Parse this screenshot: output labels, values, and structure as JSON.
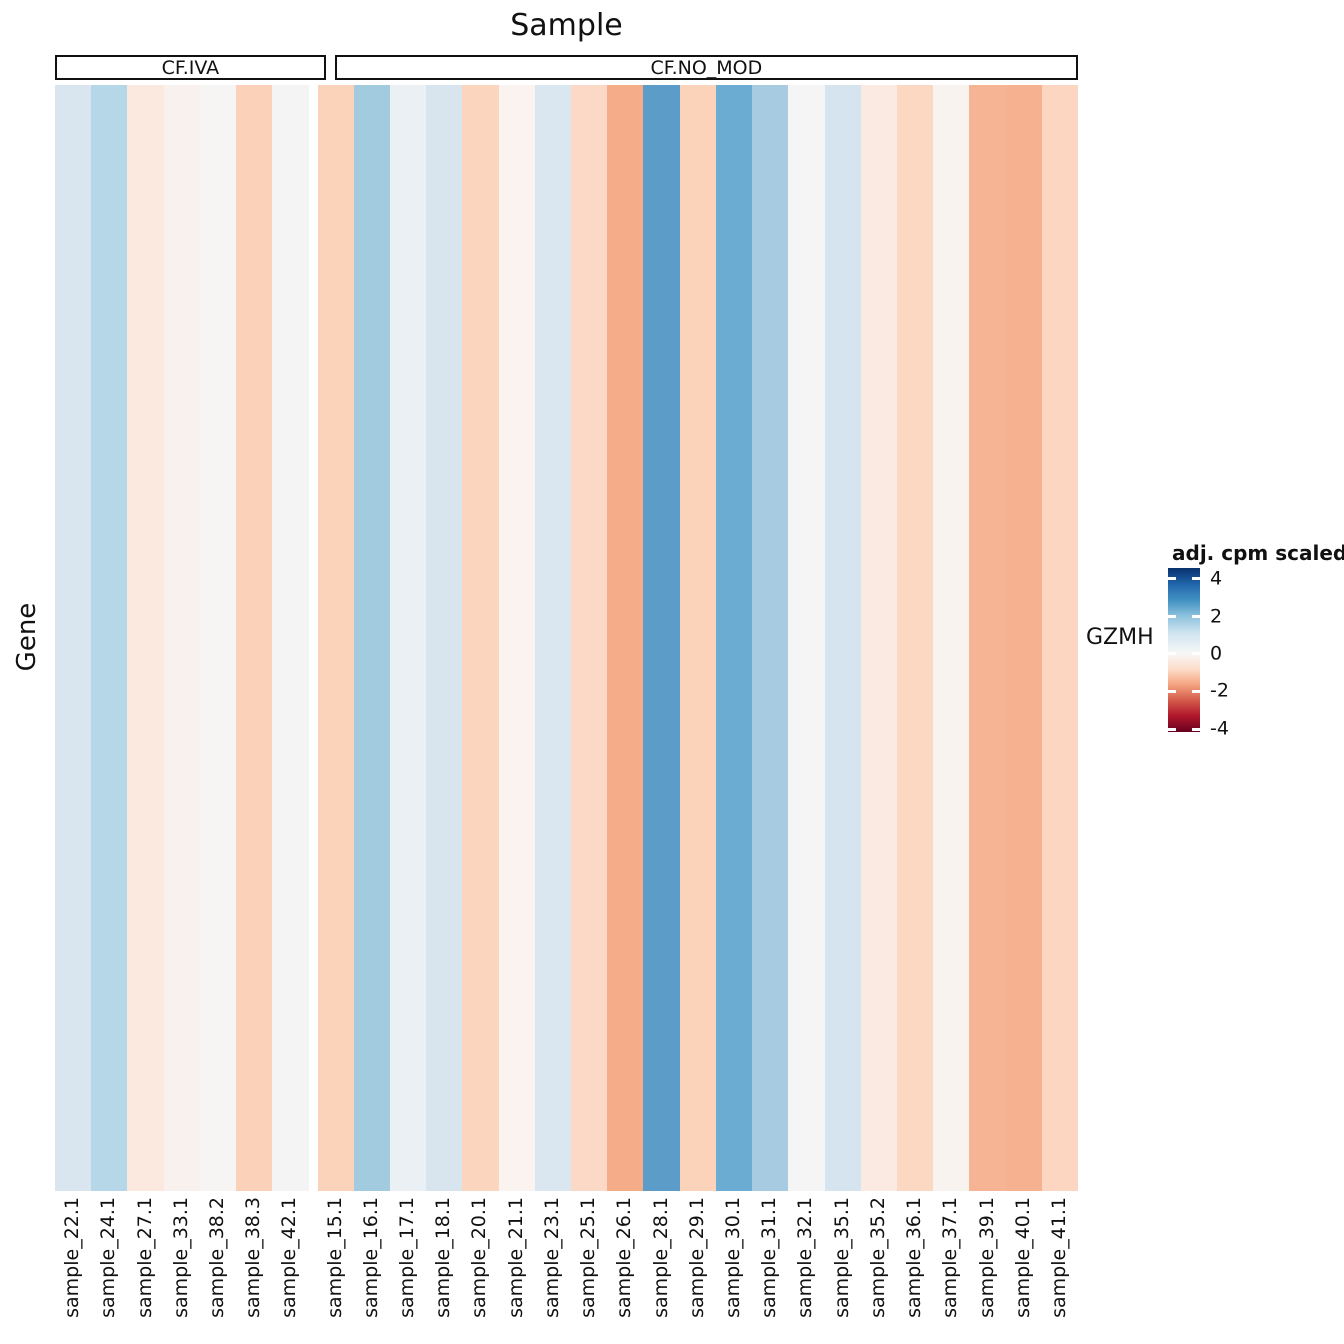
{
  "title": "Sample",
  "y_axis_label": "Gene",
  "row_label": "GZMH",
  "legend": {
    "title": "adj. cpm scaled",
    "ticks": [
      {
        "label": "4",
        "pos_pct": 6.7
      },
      {
        "label": "2",
        "pos_pct": 29.6
      },
      {
        "label": "0",
        "pos_pct": 52.4
      },
      {
        "label": "-2",
        "pos_pct": 75.3
      },
      {
        "label": "-4",
        "pos_pct": 98.2
      }
    ],
    "palette": "RdBu",
    "color_max": "#08306b",
    "color_mid": "#f7f7f7",
    "color_min": "#67001f"
  },
  "chart_data": {
    "type": "heatmap",
    "title": "Sample",
    "xlabel": "Sample",
    "ylabel": "Gene",
    "rows": [
      "GZMH"
    ],
    "value_label": "adj. cpm scaled",
    "value_range": [
      -4,
      4
    ],
    "legend_position": "right",
    "facets": [
      "CF.IVA",
      "CF.NO_MOD"
    ],
    "groups": [
      {
        "name": "CF.IVA",
        "samples": [
          {
            "label": "sample_22.1",
            "value": 0.9,
            "color": "#d9e6f0"
          },
          {
            "label": "sample_24.1",
            "value": 1.5,
            "color": "#b5d7e8"
          },
          {
            "label": "sample_27.1",
            "value": -0.5,
            "color": "#fbe9e0"
          },
          {
            "label": "sample_33.1",
            "value": -0.2,
            "color": "#f8f1ee"
          },
          {
            "label": "sample_38.2",
            "value": 0.0,
            "color": "#f6f5f4"
          },
          {
            "label": "sample_38.3",
            "value": -1.25,
            "color": "#fbd2b9"
          },
          {
            "label": "sample_42.1",
            "value": 0.05,
            "color": "#f5f4f4"
          }
        ]
      },
      {
        "name": "CF.NO_MOD",
        "samples": [
          {
            "label": "sample_15.1",
            "value": -1.2,
            "color": "#fbd3bb"
          },
          {
            "label": "sample_16.1",
            "value": 1.75,
            "color": "#a3cbe0"
          },
          {
            "label": "sample_17.1",
            "value": 0.45,
            "color": "#ebf0f4"
          },
          {
            "label": "sample_18.1",
            "value": 0.95,
            "color": "#d8e5ee"
          },
          {
            "label": "sample_20.1",
            "value": -1.15,
            "color": "#fcd5bf"
          },
          {
            "label": "sample_21.1",
            "value": -0.2,
            "color": "#faf3ef"
          },
          {
            "label": "sample_23.1",
            "value": 0.85,
            "color": "#dbe7f0"
          },
          {
            "label": "sample_25.1",
            "value": -1.0,
            "color": "#fcd9c6"
          },
          {
            "label": "sample_26.1",
            "value": -1.9,
            "color": "#f5ac89"
          },
          {
            "label": "sample_28.1",
            "value": 2.75,
            "color": "#5b9cc8"
          },
          {
            "label": "sample_29.1",
            "value": -1.2,
            "color": "#fbd3bb"
          },
          {
            "label": "sample_30.1",
            "value": 2.5,
            "color": "#6badd2"
          },
          {
            "label": "sample_31.1",
            "value": 1.7,
            "color": "#a7cce1"
          },
          {
            "label": "sample_32.1",
            "value": 0.0,
            "color": "#f6f5f5"
          },
          {
            "label": "sample_35.1",
            "value": 1.0,
            "color": "#d5e4ef"
          },
          {
            "label": "sample_35.2",
            "value": -0.5,
            "color": "#fbeae2"
          },
          {
            "label": "sample_36.1",
            "value": -1.05,
            "color": "#fcd7c2"
          },
          {
            "label": "sample_37.1",
            "value": -0.2,
            "color": "#f9f3f0"
          },
          {
            "label": "sample_39.1",
            "value": -1.65,
            "color": "#f6b494"
          },
          {
            "label": "sample_40.1",
            "value": -1.7,
            "color": "#f5b190"
          },
          {
            "label": "sample_41.1",
            "value": -1.05,
            "color": "#fcd6c1"
          }
        ]
      }
    ]
  }
}
